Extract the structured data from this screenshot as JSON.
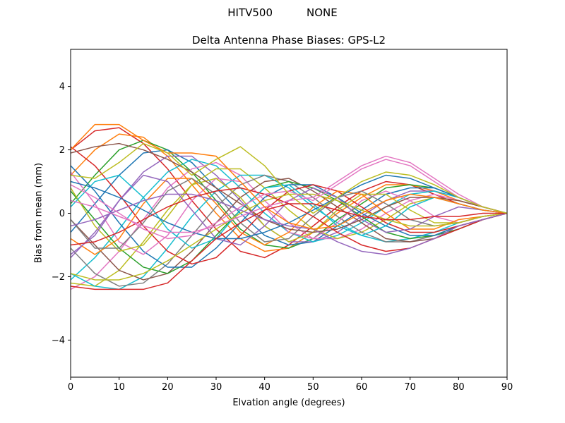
{
  "chart_data": {
    "type": "line",
    "suptitle_left": "HITV500",
    "suptitle_right": "NONE",
    "title": "Delta Antenna Phase Biases: GPS-L2",
    "xlabel": "Elvation angle (degrees)",
    "ylabel": "Bias from mean (mm)",
    "xlim": [
      0,
      90
    ],
    "ylim": [
      -5.17,
      5.17
    ],
    "xticks": [
      0,
      10,
      20,
      30,
      40,
      50,
      60,
      70,
      80,
      90
    ],
    "yticks": [
      -4,
      -2,
      0,
      2,
      4
    ],
    "grid": false,
    "legend": "none",
    "axis_color": "#000000",
    "background": "#ffffff",
    "x": [
      0,
      5,
      10,
      15,
      20,
      25,
      30,
      35,
      40,
      45,
      50,
      55,
      60,
      65,
      70,
      75,
      80,
      85,
      90
    ],
    "series": [
      {
        "name": "line-01",
        "color": "#d62728",
        "values": [
          2.0,
          2.6,
          2.7,
          2.2,
          1.4,
          0.4,
          -0.5,
          -1.2,
          -1.4,
          -1.0,
          -0.4,
          0.2,
          0.7,
          1.0,
          0.9,
          0.6,
          0.3,
          0.1,
          0.0
        ]
      },
      {
        "name": "line-02",
        "color": "#ff7f0e",
        "values": [
          1.2,
          2.0,
          2.5,
          2.4,
          1.8,
          0.9,
          0.0,
          -0.8,
          -1.2,
          -1.1,
          -0.6,
          0.0,
          0.5,
          0.9,
          0.9,
          0.7,
          0.4,
          0.2,
          0.0
        ]
      },
      {
        "name": "line-03",
        "color": "#2ca02c",
        "values": [
          0.3,
          1.2,
          2.0,
          2.3,
          2.0,
          1.3,
          0.4,
          -0.5,
          -1.0,
          -1.1,
          -0.8,
          -0.2,
          0.3,
          0.8,
          0.9,
          0.8,
          0.5,
          0.2,
          0.0
        ]
      },
      {
        "name": "line-04",
        "color": "#1f77b4",
        "values": [
          -0.6,
          0.3,
          1.2,
          1.9,
          2.0,
          1.6,
          0.8,
          0.0,
          -0.7,
          -1.0,
          -0.9,
          -0.4,
          0.1,
          0.6,
          0.8,
          0.8,
          0.5,
          0.2,
          0.0
        ]
      },
      {
        "name": "line-05",
        "color": "#9467bd",
        "values": [
          -1.4,
          -0.6,
          0.4,
          1.3,
          1.8,
          1.8,
          1.2,
          0.4,
          -0.4,
          -0.9,
          -0.9,
          -0.6,
          -0.1,
          0.4,
          0.7,
          0.7,
          0.5,
          0.2,
          0.0
        ]
      },
      {
        "name": "line-06",
        "color": "#17becf",
        "values": [
          -2.1,
          -1.4,
          -0.5,
          0.5,
          1.3,
          1.7,
          1.5,
          0.8,
          0.0,
          -0.6,
          -0.9,
          -0.7,
          -0.3,
          0.2,
          0.6,
          0.7,
          0.5,
          0.2,
          0.0
        ]
      },
      {
        "name": "line-07",
        "color": "#e377c2",
        "values": [
          -2.4,
          -2.0,
          -1.2,
          -0.2,
          0.8,
          1.4,
          1.6,
          1.2,
          0.4,
          -0.3,
          -0.8,
          -0.8,
          -0.5,
          0.0,
          0.4,
          0.6,
          0.4,
          0.2,
          0.0
        ]
      },
      {
        "name": "line-08",
        "color": "#bcbd22",
        "values": [
          -2.2,
          -2.3,
          -1.8,
          -0.9,
          0.1,
          0.9,
          1.4,
          1.4,
          0.8,
          0.1,
          -0.5,
          -0.8,
          -0.6,
          -0.2,
          0.3,
          0.5,
          0.4,
          0.2,
          0.0
        ]
      },
      {
        "name": "line-09",
        "color": "#17becf",
        "values": [
          -1.9,
          -2.3,
          -2.4,
          -2.0,
          -1.1,
          -0.1,
          0.7,
          1.2,
          1.2,
          0.8,
          0.2,
          -0.3,
          -0.7,
          -0.9,
          -0.8,
          -0.6,
          -0.3,
          -0.1,
          0.0
        ]
      },
      {
        "name": "line-10",
        "color": "#7f7f7f",
        "values": [
          -1.1,
          -1.9,
          -2.3,
          -2.2,
          -1.6,
          -0.7,
          0.2,
          0.9,
          1.2,
          1.0,
          0.5,
          -0.1,
          -0.6,
          -0.9,
          -0.9,
          -0.7,
          -0.4,
          -0.2,
          0.0
        ]
      },
      {
        "name": "line-11",
        "color": "#8c564b",
        "values": [
          -0.2,
          -1.0,
          -1.8,
          -2.1,
          -1.9,
          -1.2,
          -0.3,
          0.5,
          1.0,
          1.1,
          0.7,
          0.2,
          -0.3,
          -0.8,
          -0.9,
          -0.8,
          -0.5,
          -0.2,
          0.0
        ]
      },
      {
        "name": "line-12",
        "color": "#2ca02c",
        "values": [
          0.7,
          -0.2,
          -1.1,
          -1.7,
          -1.9,
          -1.5,
          -0.7,
          0.1,
          0.8,
          1.0,
          0.8,
          0.4,
          -0.1,
          -0.6,
          -0.8,
          -0.7,
          -0.5,
          -0.2,
          0.0
        ]
      },
      {
        "name": "line-13",
        "color": "#1f77b4",
        "values": [
          1.5,
          0.7,
          -0.3,
          -1.2,
          -1.7,
          -1.7,
          -1.1,
          -0.3,
          0.5,
          0.9,
          0.9,
          0.5,
          0.0,
          -0.4,
          -0.7,
          -0.7,
          -0.4,
          -0.2,
          0.0
        ]
      },
      {
        "name": "line-14",
        "color": "#d62728",
        "values": [
          2.1,
          1.5,
          0.6,
          -0.4,
          -1.2,
          -1.6,
          -1.4,
          -0.7,
          0.1,
          0.7,
          0.9,
          0.7,
          0.2,
          -0.3,
          -0.6,
          -0.6,
          -0.4,
          -0.2,
          0.0
        ]
      },
      {
        "name": "line-15",
        "color": "#e377c2",
        "values": [
          1.3,
          0.3,
          -0.9,
          -1.3,
          -0.7,
          0.4,
          1.1,
          1.0,
          0.2,
          -0.6,
          -0.8,
          -0.3,
          0.4,
          0.7,
          0.4,
          -0.1,
          -0.3,
          -0.1,
          0.0
        ]
      },
      {
        "name": "line-16",
        "color": "#bcbd22",
        "values": [
          0.8,
          -0.4,
          -1.2,
          -1.0,
          -0.1,
          0.9,
          1.1,
          0.5,
          -0.4,
          -0.9,
          -0.6,
          0.1,
          0.6,
          0.6,
          0.1,
          -0.3,
          -0.3,
          -0.1,
          0.0
        ]
      },
      {
        "name": "line-17",
        "color": "#ff7f0e",
        "values": [
          -0.8,
          -1.3,
          -0.8,
          0.3,
          1.1,
          1.1,
          0.3,
          -0.6,
          -1.0,
          -0.6,
          0.2,
          0.7,
          0.6,
          0.0,
          -0.5,
          -0.5,
          -0.2,
          -0.1,
          0.0
        ]
      },
      {
        "name": "line-18",
        "color": "#9467bd",
        "values": [
          -1.3,
          -0.7,
          0.4,
          1.2,
          1.0,
          0.1,
          -0.8,
          -1.0,
          -0.4,
          0.4,
          0.8,
          0.5,
          -0.2,
          -0.6,
          -0.5,
          -0.1,
          0.2,
          0.1,
          0.0
        ]
      },
      {
        "name": "line-19",
        "color": "#17becf",
        "values": [
          0.2,
          1.0,
          1.2,
          0.5,
          -0.5,
          -1.1,
          -0.8,
          0.1,
          0.8,
          0.9,
          0.3,
          -0.4,
          -0.7,
          -0.4,
          0.2,
          0.5,
          0.3,
          0.1,
          0.0
        ]
      },
      {
        "name": "line-20",
        "color": "#7f7f7f",
        "values": [
          -0.2,
          -1.1,
          -1.1,
          -0.3,
          0.7,
          1.1,
          0.6,
          -0.3,
          -0.9,
          -0.8,
          -0.1,
          0.5,
          0.7,
          0.3,
          -0.2,
          -0.4,
          -0.3,
          -0.1,
          0.0
        ]
      },
      {
        "name": "line-21",
        "color": "#8c564b",
        "values": [
          1.9,
          2.1,
          2.2,
          2.0,
          1.7,
          1.3,
          0.8,
          0.3,
          -0.2,
          -0.5,
          -0.6,
          -0.5,
          -0.2,
          0.2,
          0.5,
          0.5,
          0.4,
          0.2,
          0.0
        ]
      },
      {
        "name": "line-22",
        "color": "#bcbd22",
        "values": [
          -1.9,
          -2.1,
          -2.1,
          -1.9,
          -1.5,
          -1.0,
          -0.5,
          0.0,
          0.4,
          0.6,
          0.6,
          0.4,
          0.1,
          -0.2,
          -0.4,
          -0.4,
          -0.3,
          -0.1,
          0.0
        ]
      },
      {
        "name": "line-23",
        "color": "#1f77b4",
        "values": [
          1.0,
          0.8,
          0.5,
          0.1,
          -0.3,
          -0.6,
          -0.8,
          -0.8,
          -0.6,
          -0.3,
          0.1,
          0.5,
          0.9,
          1.2,
          1.1,
          0.8,
          0.5,
          0.2,
          0.0
        ]
      },
      {
        "name": "line-24",
        "color": "#d62728",
        "values": [
          -1.0,
          -0.9,
          -0.6,
          -0.2,
          0.2,
          0.5,
          0.7,
          0.8,
          0.6,
          0.3,
          -0.1,
          -0.6,
          -1.0,
          -1.2,
          -1.1,
          -0.8,
          -0.5,
          -0.2,
          0.0
        ]
      },
      {
        "name": "line-25",
        "color": "#e377c2",
        "values": [
          0.4,
          0.2,
          -0.1,
          -0.4,
          -0.6,
          -0.6,
          -0.4,
          -0.1,
          0.2,
          0.4,
          0.5,
          1.0,
          1.5,
          1.8,
          1.6,
          1.1,
          0.6,
          0.2,
          0.0
        ]
      },
      {
        "name": "line-26",
        "color": "#9467bd",
        "values": [
          -0.4,
          -0.2,
          0.1,
          0.4,
          0.6,
          0.6,
          0.4,
          0.1,
          -0.2,
          -0.4,
          -0.5,
          -0.9,
          -1.2,
          -1.3,
          -1.1,
          -0.8,
          -0.4,
          -0.2,
          0.0
        ]
      },
      {
        "name": "line-27",
        "color": "#e377c2",
        "values": [
          0.9,
          0.5,
          0.0,
          -0.5,
          -0.8,
          -0.7,
          -0.3,
          0.2,
          0.6,
          0.7,
          0.4,
          0.9,
          1.4,
          1.7,
          1.5,
          1.0,
          0.5,
          0.2,
          0.0
        ]
      },
      {
        "name": "line-28",
        "color": "#ff7f0e",
        "values": [
          2.0,
          2.8,
          2.8,
          2.3,
          1.9,
          1.9,
          1.8,
          1.0,
          0.2,
          -0.3,
          -0.5,
          -0.4,
          0.0,
          0.4,
          0.6,
          0.5,
          0.3,
          0.1,
          0.0
        ]
      },
      {
        "name": "line-29",
        "color": "#d62728",
        "values": [
          -2.3,
          -2.4,
          -2.4,
          -2.4,
          -2.2,
          -1.5,
          -0.8,
          -0.3,
          0.1,
          0.3,
          0.3,
          0.1,
          -0.1,
          -0.2,
          -0.2,
          -0.1,
          -0.1,
          0.0,
          0.0
        ]
      },
      {
        "name": "line-30",
        "color": "#bcbd22",
        "values": [
          1.2,
          1.1,
          1.6,
          2.2,
          1.9,
          1.2,
          1.7,
          2.1,
          1.5,
          0.6,
          0.0,
          0.5,
          1.0,
          1.3,
          1.2,
          0.9,
          0.5,
          0.2,
          0.0
        ]
      }
    ]
  }
}
